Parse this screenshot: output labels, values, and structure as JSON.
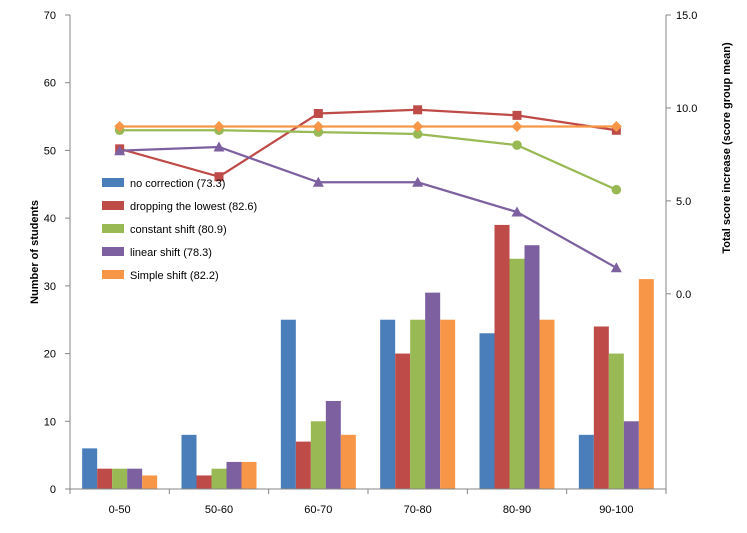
{
  "chart_data": {
    "type": "bar",
    "categories": [
      "0-50",
      "50-60",
      "60-70",
      "70-80",
      "80-90",
      "90-100"
    ],
    "ylabel": "Number of students",
    "y2label": "Total score increase (score group mean)",
    "ylim": [
      0,
      70
    ],
    "y_ticks": [
      "0",
      "10",
      "20",
      "30",
      "40",
      "50",
      "60",
      "70"
    ],
    "y2_ticks": [
      "0.0",
      "5.0",
      "10.0",
      "15.0"
    ],
    "y2_tick_values": [
      0,
      5,
      10,
      15
    ],
    "y2lim": [
      -10.5,
      15
    ],
    "grid": false,
    "legend_position": "left",
    "bar_series": [
      {
        "name": "no correction (73.3)",
        "color": "#4a7ebb",
        "values": [
          6,
          8,
          25,
          25,
          23,
          8
        ]
      },
      {
        "name": "dropping the lowest (82.6)",
        "color": "#be4b48",
        "values": [
          3,
          2,
          7,
          20,
          39,
          24
        ]
      },
      {
        "name": "constant shift (80.9)",
        "color": "#98b954",
        "values": [
          3,
          3,
          10,
          25,
          34,
          20
        ]
      },
      {
        "name": "linear shift (78.3)",
        "color": "#7d60a0",
        "values": [
          3,
          4,
          13,
          29,
          36,
          10
        ]
      },
      {
        "name": "Simple shift (82.2)",
        "color": "#f79646",
        "values": [
          2,
          4,
          8,
          25,
          25,
          31
        ]
      }
    ],
    "line_series": [
      {
        "color": "#be4b48",
        "marker": "square",
        "values": [
          7.8,
          6.3,
          9.7,
          9.9,
          9.6,
          8.8
        ]
      },
      {
        "color": "#98b954",
        "marker": "circle",
        "values": [
          8.8,
          8.8,
          8.7,
          8.6,
          8.0,
          5.6
        ]
      },
      {
        "color": "#7d60a0",
        "marker": "triangle",
        "values": [
          7.7,
          7.9,
          6.0,
          6.0,
          4.4,
          1.4
        ]
      },
      {
        "color": "#f79646",
        "marker": "diamond",
        "values": [
          9.0,
          9.0,
          9.0,
          9.0,
          9.0,
          9.0
        ]
      }
    ]
  }
}
